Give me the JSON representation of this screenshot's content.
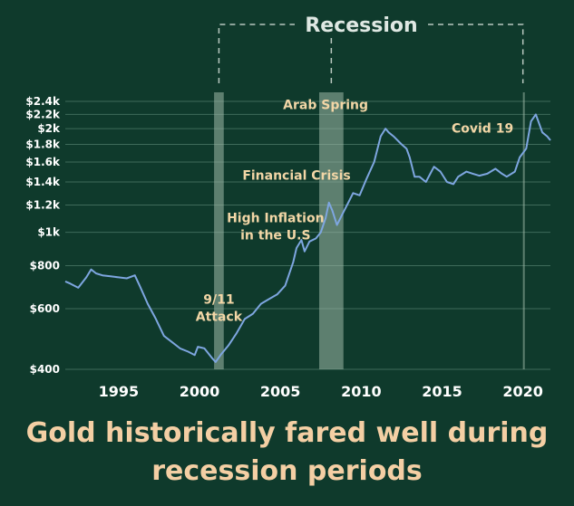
{
  "recession_label": "Recession",
  "caption": {
    "line1": "Gold historically fared well during",
    "line2": "recession periods"
  },
  "colors": {
    "background": "#0f3a2c",
    "line": "#7ea6e0",
    "band": "#9fb8a8",
    "annotation": "#f2d6a6",
    "title": "#f4cfa4"
  },
  "chart_data": {
    "type": "line",
    "title": "Gold historically fared well during recession periods",
    "y_scale": "log",
    "ylim": [
      400,
      2400
    ],
    "xlim": [
      1991.7,
      2021.7
    ],
    "y_ticks": [
      {
        "value": 400,
        "label": "$400"
      },
      {
        "value": 600,
        "label": "$600"
      },
      {
        "value": 800,
        "label": "$800"
      },
      {
        "value": 1000,
        "label": "$1k"
      },
      {
        "value": 1200,
        "label": "$1.2k"
      },
      {
        "value": 1400,
        "label": "$1.4k"
      },
      {
        "value": 1600,
        "label": "$1.6k"
      },
      {
        "value": 1800,
        "label": "$1.8k"
      },
      {
        "value": 2000,
        "label": "$2k"
      },
      {
        "value": 2200,
        "label": "$2.2k"
      },
      {
        "value": 2400,
        "label": "$2.4k"
      }
    ],
    "x_ticks": [
      {
        "value": 1995,
        "label": "1995"
      },
      {
        "value": 2000,
        "label": "2000"
      },
      {
        "value": 2005,
        "label": "2005"
      },
      {
        "value": 2010,
        "label": "2010"
      },
      {
        "value": 2015,
        "label": "2015"
      },
      {
        "value": 2020,
        "label": "2020"
      }
    ],
    "grid": true,
    "series": [
      {
        "x": [
          1991.7,
          1992.0,
          1992.5,
          1993.0,
          1993.3,
          1993.6,
          1994.0,
          1994.5,
          1995.0,
          1995.5,
          1996.0,
          1996.3,
          1996.8,
          1997.3,
          1997.8,
          1998.3,
          1998.8,
          1999.3,
          1999.7,
          1999.9,
          2000.3,
          2000.8,
          2001.0,
          2001.3,
          2001.8,
          2002.3,
          2002.8,
          2003.3,
          2003.8,
          2004.3,
          2004.8,
          2005.3,
          2005.8,
          2006.0,
          2006.3,
          2006.5,
          2006.8,
          2007.2,
          2007.5,
          2007.8,
          2008.0,
          2008.2,
          2008.5,
          2008.8,
          2009.2,
          2009.5,
          2009.9,
          2010.3,
          2010.8,
          2011.2,
          2011.5,
          2011.7,
          2012.0,
          2012.5,
          2012.8,
          2013.0,
          2013.3,
          2013.6,
          2014.0,
          2014.5,
          2014.9,
          2015.3,
          2015.7,
          2016.0,
          2016.5,
          2016.9,
          2017.3,
          2017.8,
          2018.3,
          2018.7,
          2019.0,
          2019.5,
          2019.8,
          2020.2,
          2020.5,
          2020.8,
          2021.2,
          2021.5,
          2021.7
        ],
        "y": [
          720,
          710,
          690,
          740,
          780,
          760,
          750,
          745,
          740,
          735,
          750,
          700,
          620,
          560,
          500,
          480,
          460,
          450,
          440,
          465,
          460,
          430,
          420,
          440,
          470,
          510,
          560,
          580,
          620,
          640,
          660,
          700,
          820,
          900,
          950,
          880,
          940,
          960,
          1000,
          1100,
          1220,
          1160,
          1050,
          1120,
          1220,
          1300,
          1280,
          1420,
          1600,
          1900,
          2000,
          1950,
          1900,
          1800,
          1750,
          1650,
          1450,
          1450,
          1400,
          1550,
          1500,
          1400,
          1380,
          1450,
          1500,
          1480,
          1460,
          1480,
          1530,
          1480,
          1450,
          1500,
          1650,
          1750,
          2100,
          2200,
          1950,
          1900,
          1850
        ]
      }
    ],
    "recession_bands": [
      [
        2000.9,
        2001.5
      ],
      [
        2007.4,
        2008.9
      ],
      [
        2020.0,
        2020.1
      ]
    ],
    "annotations": [
      {
        "lines": [
          "9/11",
          "Attack"
        ],
        "x": 2001.2,
        "y": 620
      },
      {
        "lines": [
          "High Inflation",
          "in the U.S"
        ],
        "x": 2004.7,
        "y": 1070
      },
      {
        "lines": [
          "Financial Crisis"
        ],
        "x": 2006.0,
        "y": 1420
      },
      {
        "lines": [
          "Arab Spring"
        ],
        "x": 2007.8,
        "y": 2280
      },
      {
        "lines": [
          "Covid 19"
        ],
        "x": 2017.5,
        "y": 1950
      }
    ]
  }
}
